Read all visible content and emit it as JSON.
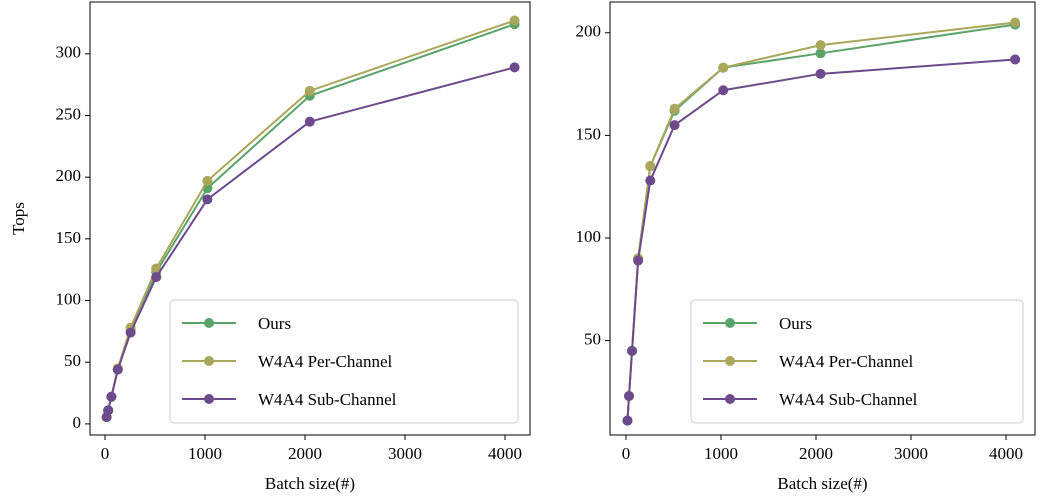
{
  "chart_data": [
    {
      "type": "line",
      "y_label": "Tops",
      "x_label": "Batch size(#)",
      "x": [
        16,
        32,
        64,
        128,
        256,
        512,
        1024,
        2048,
        4096
      ],
      "series": [
        {
          "name": "Ours",
          "color": "#5aa469",
          "values": [
            5.5,
            11,
            22,
            44,
            76,
            123,
            191,
            266,
            324
          ]
        },
        {
          "name": "W4A4 Per-Channel",
          "color": "#aaa65c",
          "values": [
            5.5,
            11,
            22,
            45,
            78,
            126,
            197,
            270,
            327
          ]
        },
        {
          "name": "W4A4 Sub-Channel",
          "color": "#6c4a8c",
          "values": [
            5.5,
            11,
            22,
            44,
            74,
            119,
            182,
            245,
            289
          ]
        }
      ],
      "xlim": [
        -150,
        4250
      ],
      "xticks": [
        0,
        1000,
        2000,
        3000,
        4000
      ],
      "ylim": [
        -9,
        342
      ],
      "yticks": [
        0,
        50,
        100,
        150,
        200,
        250,
        300
      ],
      "legend": "lower right"
    },
    {
      "type": "line",
      "x_label": "Batch size(#)",
      "x": [
        16,
        32,
        64,
        128,
        256,
        512,
        1024,
        2048,
        4096
      ],
      "series": [
        {
          "name": "Ours",
          "color": "#5aa469",
          "values": [
            11,
            23,
            45,
            90,
            135,
            162,
            183,
            190,
            204
          ]
        },
        {
          "name": "W4A4 Per-Channel",
          "color": "#aaa65c",
          "values": [
            11,
            23,
            45,
            90,
            135,
            163,
            183,
            194,
            205
          ]
        },
        {
          "name": "W4A4 Sub-Channel",
          "color": "#6c4a8c",
          "values": [
            11,
            23,
            45,
            89,
            128,
            155,
            172,
            180,
            187
          ]
        }
      ],
      "xlim": [
        -168,
        4305
      ],
      "xticks": [
        0,
        1000,
        2000,
        3000,
        4000
      ],
      "ylim": [
        4,
        215
      ],
      "yticks": [
        50,
        100,
        150,
        200
      ],
      "legend": "lower right"
    }
  ]
}
